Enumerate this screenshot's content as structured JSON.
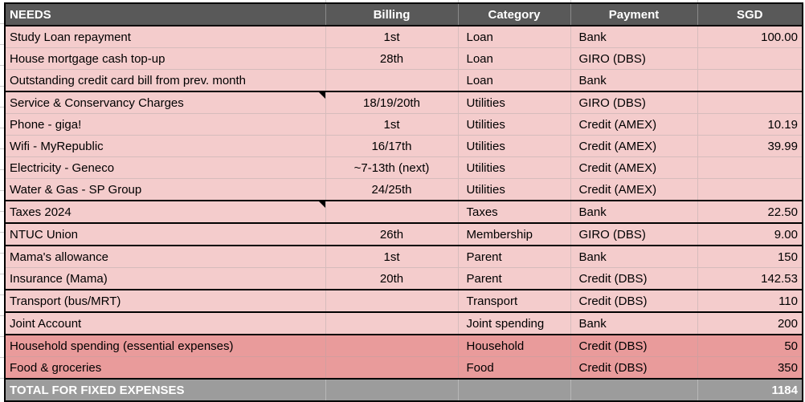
{
  "colors": {
    "header_bg": "#595959",
    "row_light": "#F4CCCC",
    "row_dark": "#E99B9B",
    "total_bg": "#9C9C9C",
    "section_border": "#000000"
  },
  "table": {
    "headers": {
      "needs": "NEEDS",
      "billing": "Billing",
      "category": "Category",
      "payment": "Payment",
      "sgd": "SGD"
    },
    "rows": [
      {
        "needs": "Study Loan repayment",
        "billing": "1st",
        "category": "Loan",
        "payment": "Bank",
        "sgd": "100.00",
        "shade": "light",
        "section_end": false,
        "note": false
      },
      {
        "needs": "House mortgage cash top-up",
        "billing": "28th",
        "category": "Loan",
        "payment": "GIRO (DBS)",
        "sgd": "",
        "shade": "light",
        "section_end": false,
        "note": false
      },
      {
        "needs": "Outstanding credit card bill from prev. month",
        "billing": "",
        "category": "Loan",
        "payment": "Bank",
        "sgd": "",
        "shade": "light",
        "section_end": true,
        "note": false
      },
      {
        "needs": "Service & Conservancy Charges",
        "billing": "18/19/20th",
        "category": "Utilities",
        "payment": "GIRO (DBS)",
        "sgd": "",
        "shade": "light",
        "section_end": false,
        "note": true
      },
      {
        "needs": "Phone - giga!",
        "billing": "1st",
        "category": "Utilities",
        "payment": "Credit (AMEX)",
        "sgd": "10.19",
        "shade": "light",
        "section_end": false,
        "note": false
      },
      {
        "needs": "Wifi - MyRepublic",
        "billing": "16/17th",
        "category": "Utilities",
        "payment": "Credit (AMEX)",
        "sgd": "39.99",
        "shade": "light",
        "section_end": false,
        "note": false
      },
      {
        "needs": "Electricity - Geneco",
        "billing": "~7-13th (next)",
        "category": "Utilities",
        "payment": "Credit (AMEX)",
        "sgd": "",
        "shade": "light",
        "section_end": false,
        "note": false
      },
      {
        "needs": "Water & Gas - SP Group",
        "billing": "24/25th",
        "category": "Utilities",
        "payment": "Credit (AMEX)",
        "sgd": "",
        "shade": "light",
        "section_end": true,
        "note": false
      },
      {
        "needs": "Taxes 2024",
        "billing": "",
        "category": "Taxes",
        "payment": "Bank",
        "sgd": "22.50",
        "shade": "light",
        "section_end": true,
        "note": true
      },
      {
        "needs": "NTUC Union",
        "billing": "26th",
        "category": "Membership",
        "payment": "GIRO (DBS)",
        "sgd": "9.00",
        "shade": "light",
        "section_end": true,
        "note": false
      },
      {
        "needs": "Mama's allowance",
        "billing": "1st",
        "category": "Parent",
        "payment": "Bank",
        "sgd": "150",
        "shade": "light",
        "section_end": false,
        "note": false
      },
      {
        "needs": "Insurance (Mama)",
        "billing": "20th",
        "category": "Parent",
        "payment": "Credit (DBS)",
        "sgd": "142.53",
        "shade": "light",
        "section_end": true,
        "note": false
      },
      {
        "needs": "Transport (bus/MRT)",
        "billing": "",
        "category": "Transport",
        "payment": "Credit (DBS)",
        "sgd": "110",
        "shade": "light",
        "section_end": true,
        "note": false
      },
      {
        "needs": "Joint Account",
        "billing": "",
        "category": "Joint spending",
        "payment": "Bank",
        "sgd": "200",
        "shade": "light",
        "section_end": true,
        "note": false
      },
      {
        "needs": "Household spending (essential expenses)",
        "billing": "",
        "category": "Household",
        "payment": "Credit (DBS)",
        "sgd": "50",
        "shade": "dark",
        "section_end": false,
        "note": false
      },
      {
        "needs": "Food & groceries",
        "billing": "",
        "category": "Food",
        "payment": "Credit (DBS)",
        "sgd": "350",
        "shade": "dark",
        "section_end": true,
        "note": false
      }
    ],
    "total": {
      "label": "TOTAL FOR FIXED EXPENSES",
      "sgd": "1184"
    }
  }
}
